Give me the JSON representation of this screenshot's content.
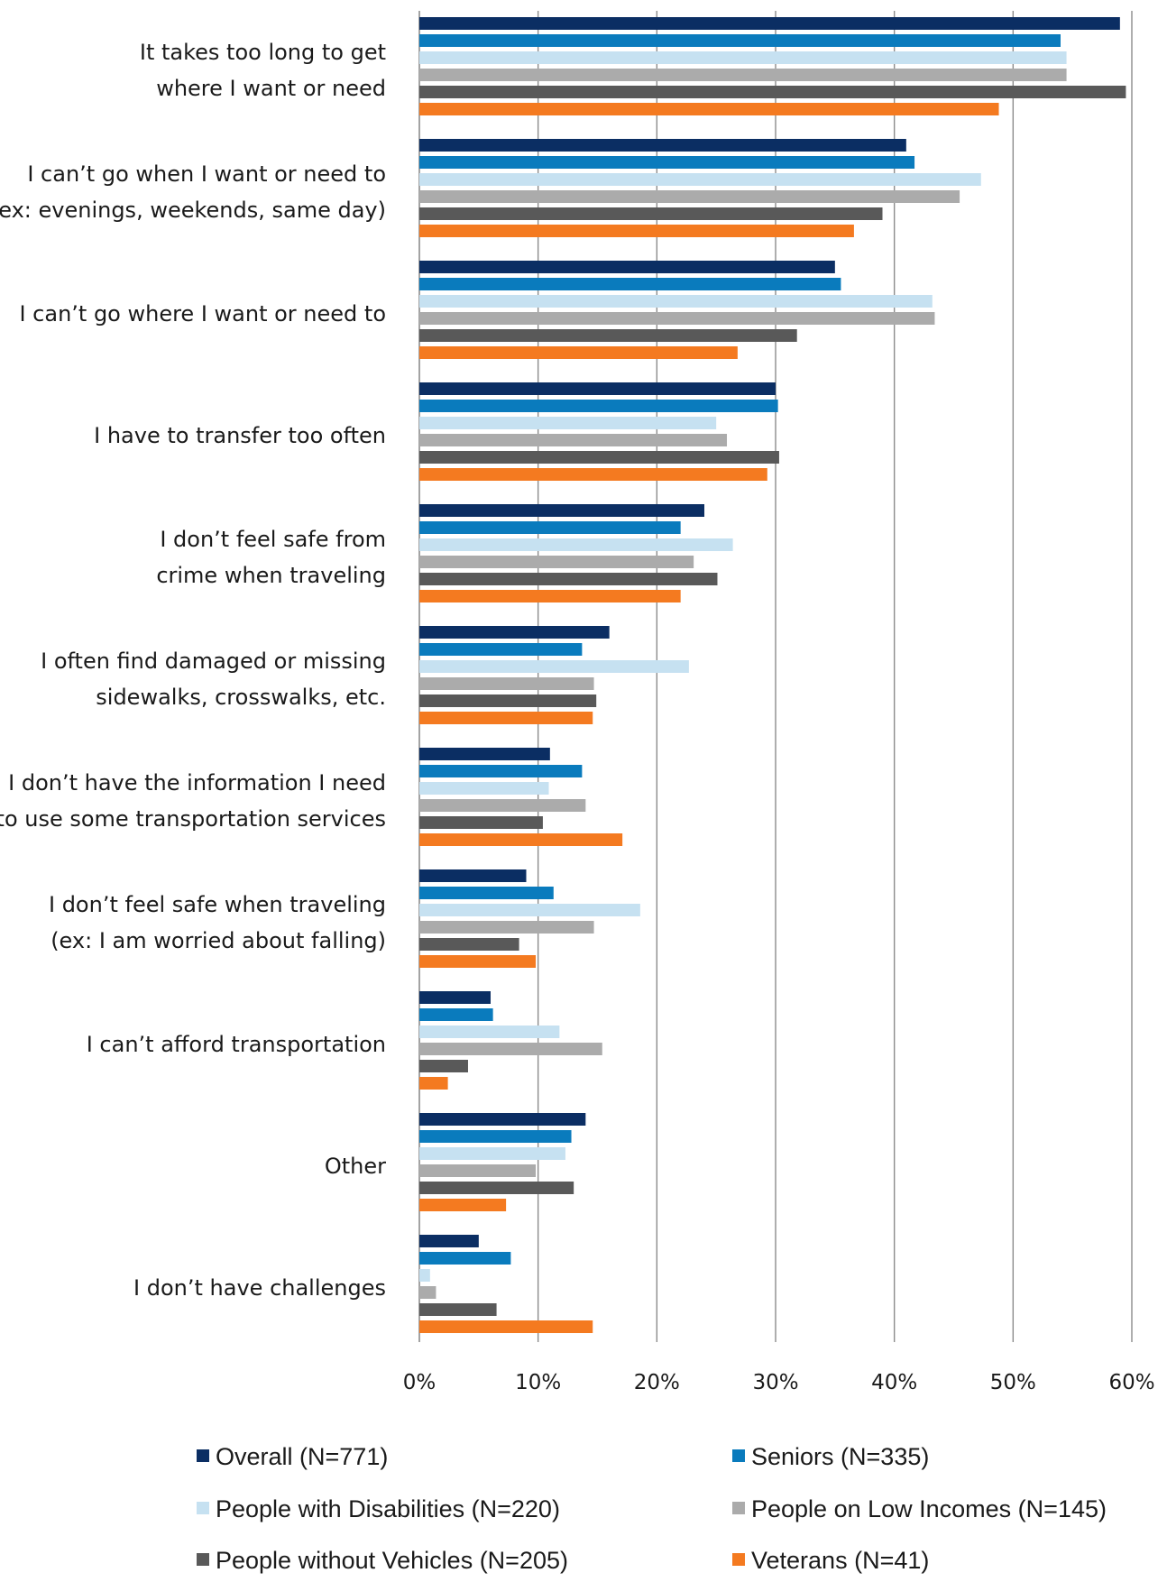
{
  "chart_data": {
    "type": "bar",
    "orientation": "horizontal",
    "categories": [
      [
        "It takes too long to get",
        "where I want or need"
      ],
      [
        "I can’t go when I want or need to",
        "(ex: evenings, weekends, same day)"
      ],
      [
        "I can’t go where I want or need to"
      ],
      [
        "I have to transfer too often"
      ],
      [
        "I don’t feel safe from",
        "crime when traveling"
      ],
      [
        "I often find damaged or missing",
        "sidewalks, crosswalks, etc."
      ],
      [
        "I don’t have the information I need",
        "to use some transportation services"
      ],
      [
        "I don’t feel safe when traveling",
        "(ex: I am worried about falling)"
      ],
      [
        "I can’t afford transportation"
      ],
      [
        "Other"
      ],
      [
        "I don’t have challenges"
      ]
    ],
    "series": [
      {
        "name": "Overall (N=771)",
        "color": "#0b2e63",
        "values": [
          59.0,
          41.0,
          35.0,
          30.0,
          24.0,
          16.0,
          11.0,
          9.0,
          6.0,
          14.0,
          5.0
        ]
      },
      {
        "name": "Seniors (N=335)",
        "color": "#0a7bbd",
        "values": [
          54.0,
          41.7,
          35.5,
          30.2,
          22.0,
          13.7,
          13.7,
          11.3,
          6.2,
          12.8,
          7.7
        ]
      },
      {
        "name": "People with Disabilities (N=220)",
        "color": "#c6e1f1",
        "values": [
          54.5,
          47.3,
          43.2,
          25.0,
          26.4,
          22.7,
          10.9,
          18.6,
          11.8,
          12.3,
          0.9
        ]
      },
      {
        "name": "People on Low Incomes (N=145)",
        "color": "#ababab",
        "values": [
          54.5,
          45.5,
          43.4,
          25.9,
          23.1,
          14.7,
          14.0,
          14.7,
          15.4,
          9.8,
          1.4
        ]
      },
      {
        "name": "People without Vehicles (N=205)",
        "color": "#595959",
        "values": [
          59.5,
          39.0,
          31.8,
          30.3,
          25.1,
          14.9,
          10.4,
          8.4,
          4.1,
          13.0,
          6.5
        ]
      },
      {
        "name": "Veterans (N=41)",
        "color": "#f47a20",
        "values": [
          48.8,
          36.6,
          26.8,
          29.3,
          22.0,
          14.6,
          17.1,
          9.8,
          2.4,
          7.3,
          14.6
        ]
      }
    ],
    "xlim": [
      0,
      60
    ],
    "xticks": [
      "0%",
      "10%",
      "20%",
      "30%",
      "40%",
      "50%",
      "60%"
    ],
    "grid": true,
    "legend_position": "bottom"
  }
}
